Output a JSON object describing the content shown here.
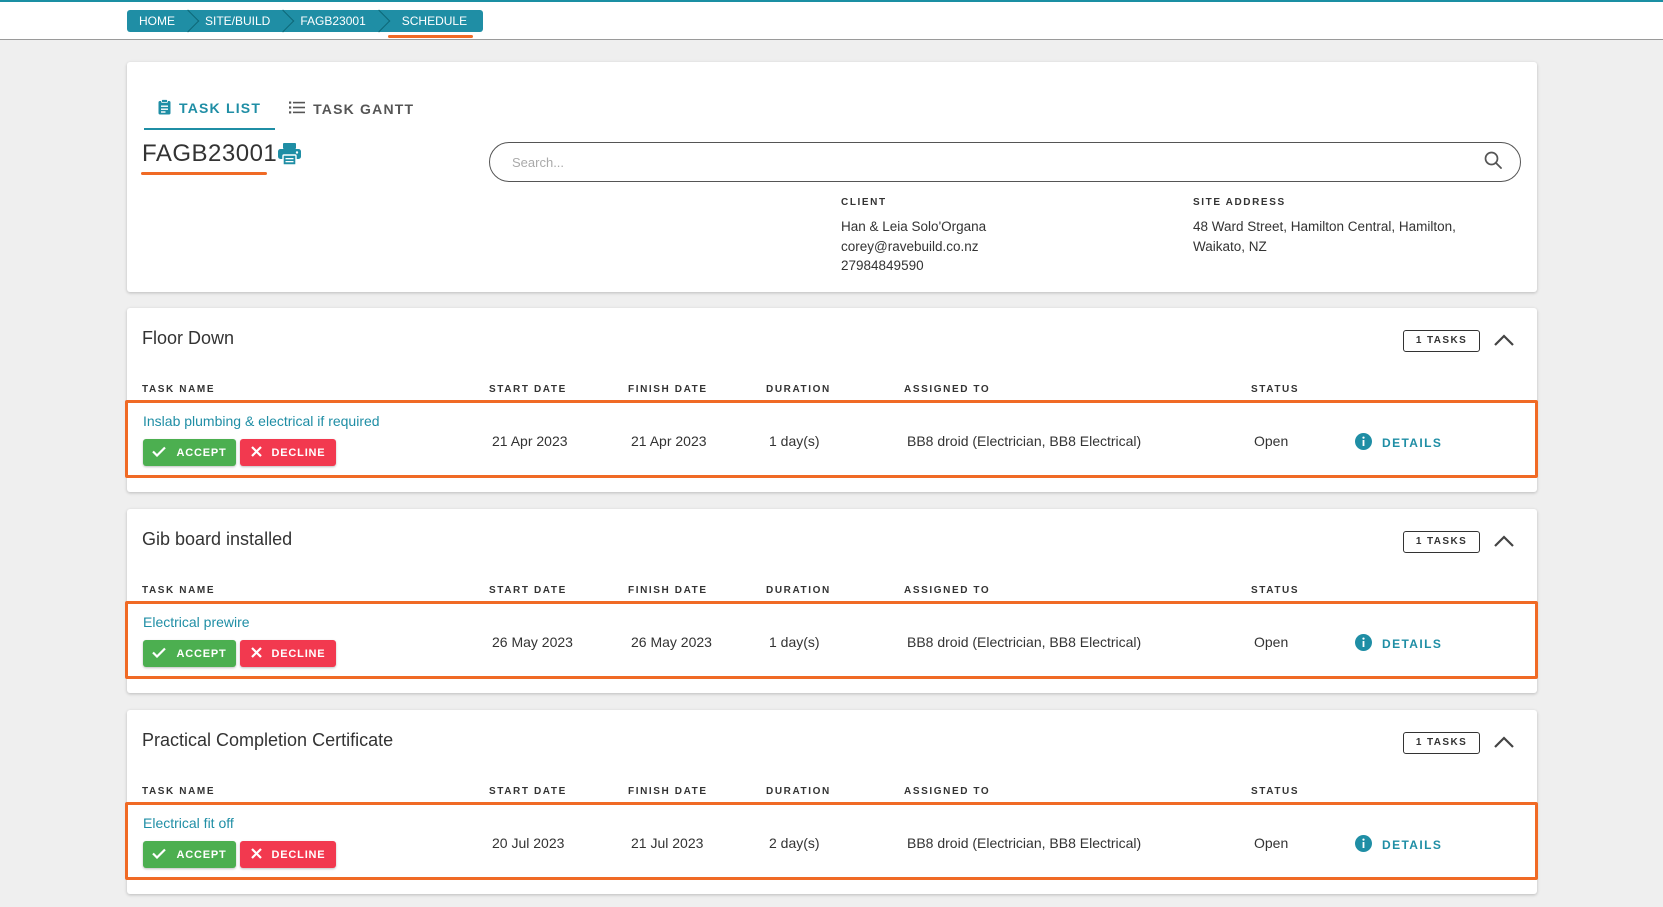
{
  "breadcrumb": {
    "items": [
      "HOME",
      "SITE/BUILD",
      "FAGB23001",
      "SCHEDULE"
    ]
  },
  "tabs": [
    {
      "label": "TASK LIST",
      "icon": "clipboard-icon",
      "active": true
    },
    {
      "label": "TASK GANTT",
      "icon": "list-icon",
      "active": false
    }
  ],
  "job": {
    "code": "FAGB23001"
  },
  "search": {
    "placeholder": "Search...",
    "value": ""
  },
  "client": {
    "label": "CLIENT",
    "name": "Han & Leia Solo'Organa",
    "email": "corey@ravebuild.co.nz",
    "phone": "27984849590"
  },
  "site": {
    "label": "SITE ADDRESS",
    "line1": "48 Ward Street, Hamilton Central, Hamilton,",
    "line2": "Waikato, NZ"
  },
  "columns": {
    "task_name": "TASK NAME",
    "start_date": "START DATE",
    "finish_date": "FINISH DATE",
    "duration": "DURATION",
    "assigned_to": "ASSIGNED TO",
    "status": "STATUS"
  },
  "actions": {
    "accept": "ACCEPT",
    "decline": "DECLINE",
    "details": "DETAILS"
  },
  "sections": [
    {
      "title": "Floor Down",
      "badge": "1 TASKS",
      "task": {
        "name": "Inslab plumbing & electrical if required",
        "start": "21 Apr 2023",
        "finish": "21 Apr 2023",
        "duration": "1 day(s)",
        "assigned": "BB8 droid (Electrician, BB8 Electrical)",
        "status": "Open"
      }
    },
    {
      "title": "Gib board installed",
      "badge": "1 TASKS",
      "task": {
        "name": "Electrical prewire",
        "start": "26 May 2023",
        "finish": "26 May 2023",
        "duration": "1 day(s)",
        "assigned": "BB8 droid (Electrician, BB8 Electrical)",
        "status": "Open"
      }
    },
    {
      "title": "Practical Completion Certificate",
      "badge": "1 TASKS",
      "task": {
        "name": "Electrical fit off",
        "start": "20 Jul 2023",
        "finish": "21 Jul 2023",
        "duration": "2 day(s)",
        "assigned": "BB8 droid (Electrician, BB8 Electrical)",
        "status": "Open"
      }
    }
  ],
  "colors": {
    "accent": "#1f8ea5",
    "highlight": "#f06a25",
    "accept": "#4caf50",
    "decline": "#f2394f"
  }
}
